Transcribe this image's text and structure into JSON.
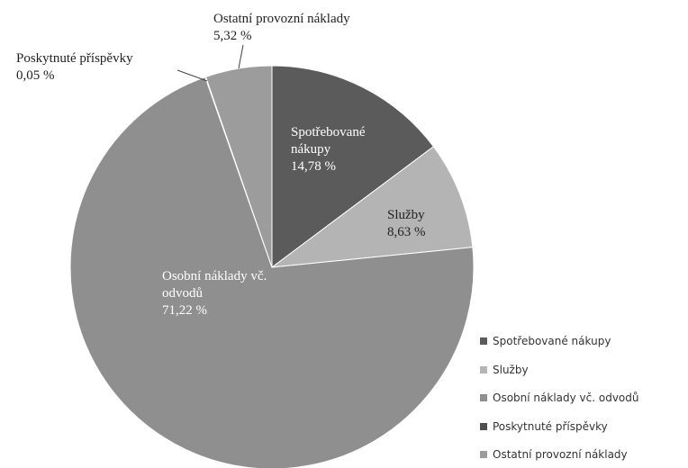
{
  "chart_data": {
    "type": "pie",
    "categories": [
      "Spotřebované nákupy",
      "Služby",
      "Osobní náklady vč. odvodů",
      "Poskytnuté příspěvky",
      "Ostatní provozní náklady"
    ],
    "values": [
      14.78,
      8.63,
      71.22,
      0.05,
      5.32
    ],
    "value_labels": [
      "14,78 %",
      "8,63 %",
      "71,22 %",
      "0,05 %",
      "5,32 %"
    ],
    "colors": [
      "#5b5b5b",
      "#b4b4b4",
      "#8f8f8f",
      "#4e4e4e",
      "#9c9c9c"
    ],
    "legend": "right"
  }
}
